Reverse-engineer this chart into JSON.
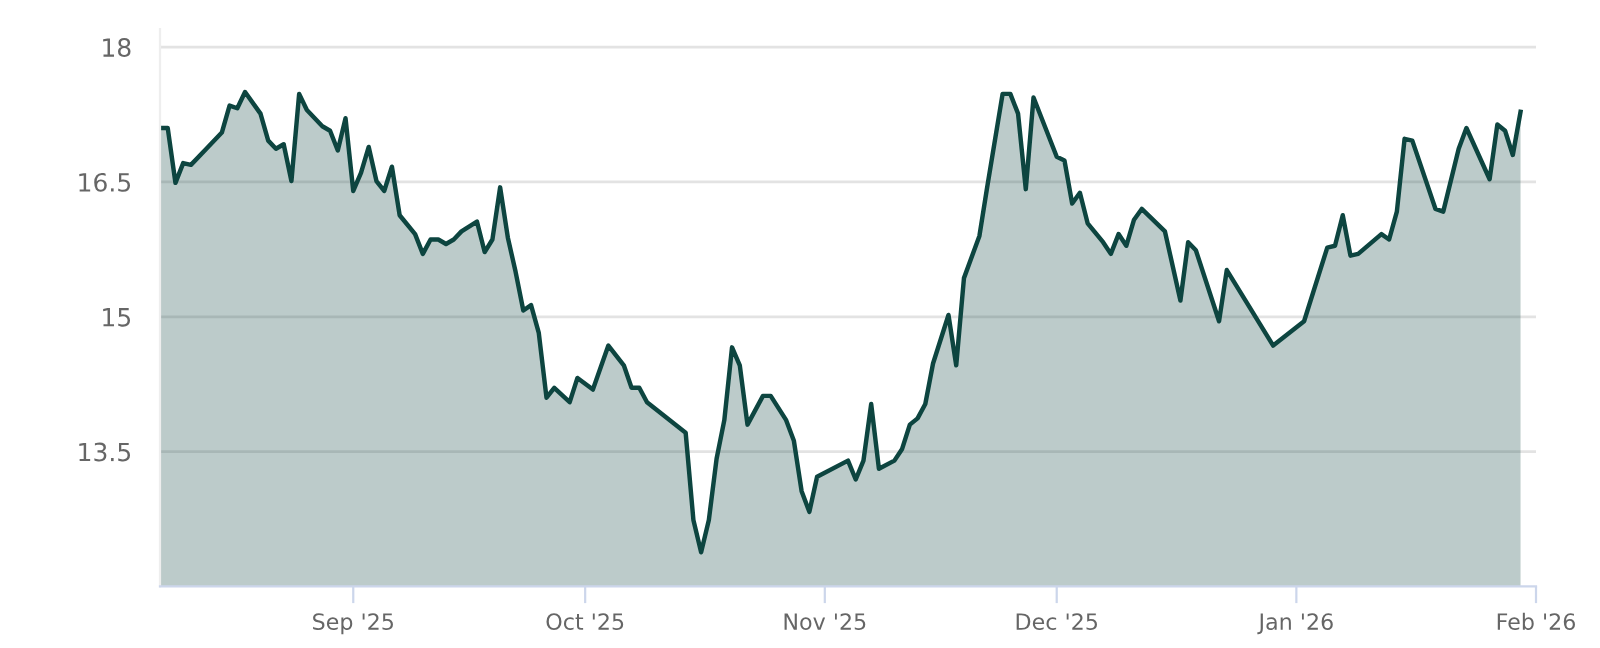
{
  "chart_data": {
    "type": "area",
    "x": [
      "2025-08-07",
      "2025-08-08",
      "2025-08-09",
      "2025-08-10",
      "2025-08-11",
      "2025-08-13",
      "2025-08-15",
      "2025-08-16",
      "2025-08-17",
      "2025-08-18",
      "2025-08-20",
      "2025-08-21",
      "2025-08-22",
      "2025-08-23",
      "2025-08-24",
      "2025-08-25",
      "2025-08-26",
      "2025-08-28",
      "2025-08-29",
      "2025-08-30",
      "2025-08-31",
      "2025-09-01",
      "2025-09-02",
      "2025-09-03",
      "2025-09-04",
      "2025-09-05",
      "2025-09-06",
      "2025-09-07",
      "2025-09-09",
      "2025-09-10",
      "2025-09-11",
      "2025-09-12",
      "2025-09-13",
      "2025-09-14",
      "2025-09-15",
      "2025-09-17",
      "2025-09-18",
      "2025-09-19",
      "2025-09-20",
      "2025-09-21",
      "2025-09-22",
      "2025-09-23",
      "2025-09-24",
      "2025-09-25",
      "2025-09-26",
      "2025-09-27",
      "2025-09-29",
      "2025-09-30",
      "2025-10-02",
      "2025-10-04",
      "2025-10-06",
      "2025-10-07",
      "2025-10-08",
      "2025-10-09",
      "2025-10-14",
      "2025-10-15",
      "2025-10-16",
      "2025-10-17",
      "2025-10-18",
      "2025-10-19",
      "2025-10-20",
      "2025-10-21",
      "2025-10-22",
      "2025-10-24",
      "2025-10-25",
      "2025-10-27",
      "2025-10-28",
      "2025-10-29",
      "2025-10-30",
      "2025-10-31",
      "2025-11-04",
      "2025-11-05",
      "2025-11-06",
      "2025-11-07",
      "2025-11-08",
      "2025-11-10",
      "2025-11-11",
      "2025-11-12",
      "2025-11-13",
      "2025-11-14",
      "2025-11-15",
      "2025-11-17",
      "2025-11-18",
      "2025-11-19",
      "2025-11-21",
      "2025-11-22",
      "2025-11-24",
      "2025-11-25",
      "2025-11-26",
      "2025-11-27",
      "2025-11-28",
      "2025-12-01",
      "2025-12-02",
      "2025-12-03",
      "2025-12-04",
      "2025-12-05",
      "2025-12-07",
      "2025-12-08",
      "2025-12-09",
      "2025-12-10",
      "2025-12-11",
      "2025-12-12",
      "2025-12-15",
      "2025-12-17",
      "2025-12-18",
      "2025-12-19",
      "2025-12-22",
      "2025-12-23",
      "2025-12-29",
      "2026-01-02",
      "2026-01-05",
      "2026-01-06",
      "2026-01-07",
      "2026-01-08",
      "2026-01-09",
      "2026-01-12",
      "2026-01-13",
      "2026-01-14",
      "2026-01-15",
      "2026-01-16",
      "2026-01-19",
      "2026-01-20",
      "2026-01-22",
      "2026-01-23",
      "2026-01-26",
      "2026-01-27",
      "2026-01-28",
      "2026-01-29",
      "2026-01-30"
    ],
    "series": [
      {
        "color": "#0d4540",
        "values": [
          17.1,
          17.1,
          16.49,
          16.71,
          16.69,
          16.87,
          17.05,
          17.35,
          17.32,
          17.5,
          17.26,
          16.96,
          16.87,
          16.92,
          16.51,
          17.48,
          17.3,
          17.12,
          17.07,
          16.85,
          17.21,
          16.4,
          16.6,
          16.89,
          16.51,
          16.4,
          16.67,
          16.13,
          15.92,
          15.7,
          15.86,
          15.86,
          15.81,
          15.86,
          15.95,
          16.06,
          15.72,
          15.86,
          16.44,
          15.88,
          15.5,
          15.07,
          15.13,
          14.82,
          14.1,
          14.21,
          14.05,
          14.32,
          14.19,
          14.68,
          14.46,
          14.21,
          14.21,
          14.05,
          13.71,
          12.74,
          12.38,
          12.74,
          13.42,
          13.85,
          14.66,
          14.46,
          13.8,
          14.12,
          14.12,
          13.85,
          13.62,
          13.06,
          12.83,
          13.22,
          13.4,
          13.19,
          13.4,
          14.03,
          13.31,
          13.4,
          13.53,
          13.8,
          13.87,
          14.03,
          14.48,
          15.02,
          14.46,
          15.43,
          15.9,
          16.44,
          17.48,
          17.48,
          17.26,
          16.42,
          17.44,
          16.78,
          16.74,
          16.26,
          16.38,
          16.04,
          15.83,
          15.7,
          15.92,
          15.79,
          16.08,
          16.2,
          15.95,
          15.18,
          15.83,
          15.74,
          14.95,
          15.52,
          14.68,
          14.95,
          15.77,
          15.79,
          16.13,
          15.68,
          15.7,
          15.92,
          15.86,
          16.17,
          16.98,
          16.96,
          16.2,
          16.17,
          16.87,
          17.1,
          16.53,
          17.14,
          17.07,
          16.8,
          17.28
        ]
      }
    ],
    "xlim": [
      "2025-08-07",
      "2026-02-01"
    ],
    "xticks": [
      {
        "value": "2025-09-01",
        "label": "Sep '25"
      },
      {
        "value": "2025-10-01",
        "label": "Oct '25"
      },
      {
        "value": "2025-11-01",
        "label": "Nov '25"
      },
      {
        "value": "2025-12-01",
        "label": "Dec '25"
      },
      {
        "value": "2026-01-01",
        "label": "Jan '26"
      },
      {
        "value": "2026-02-01",
        "label": "Feb '26"
      }
    ],
    "ylim": [
      12,
      18.2
    ],
    "yticks": [
      13.5,
      15,
      16.5,
      18
    ],
    "grid": "y"
  }
}
